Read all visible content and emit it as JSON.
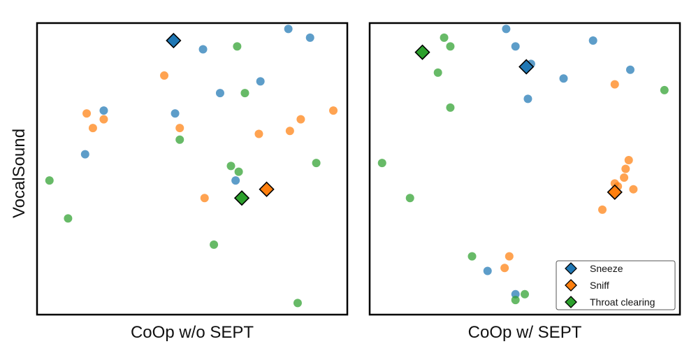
{
  "figure": {
    "ylabel": "VocalSound",
    "legend_position": "bottom-right of right panel"
  },
  "colors": {
    "Sneeze": "#1f77b4",
    "Sniff": "#ff7f0e",
    "Throat clearing": "#2ca02c"
  },
  "chart_data": [
    {
      "type": "scatter",
      "xlabel": "CoOp w/o SEPT",
      "ylabel": "VocalSound",
      "xlim": [
        0,
        100
      ],
      "ylim": [
        0,
        100
      ],
      "grid": false,
      "series": [
        {
          "name": "Sneeze",
          "points": [
            [
              21.5,
              70
            ],
            [
              15.5,
              55
            ],
            [
              44.5,
              69
            ],
            [
              53.5,
              91
            ],
            [
              59,
              76
            ],
            [
              72,
              80
            ],
            [
              81,
              98
            ],
            [
              88,
              95
            ],
            [
              64,
              46
            ]
          ],
          "prototype": [
            44,
            94
          ]
        },
        {
          "name": "Sniff",
          "points": [
            [
              16,
              69
            ],
            [
              18,
              64
            ],
            [
              21.5,
              67
            ],
            [
              41,
              82
            ],
            [
              46,
              64
            ],
            [
              71.5,
              62
            ],
            [
              81.5,
              63
            ],
            [
              85,
              67
            ],
            [
              95.5,
              70
            ],
            [
              54,
              40
            ]
          ],
          "prototype": [
            74,
            43
          ]
        },
        {
          "name": "Throat clearing",
          "points": [
            [
              4,
              46
            ],
            [
              10,
              33
            ],
            [
              46,
              60
            ],
            [
              62.5,
              51
            ],
            [
              65,
              49
            ],
            [
              67,
              76
            ],
            [
              64.5,
              92
            ],
            [
              90,
              52
            ],
            [
              57,
              24
            ],
            [
              84,
              4
            ]
          ],
          "prototype": [
            66,
            40
          ]
        }
      ]
    },
    {
      "type": "scatter",
      "xlabel": "CoOp w/ SEPT",
      "ylabel": "",
      "xlim": [
        0,
        100
      ],
      "ylim": [
        0,
        100
      ],
      "grid": false,
      "series": [
        {
          "name": "Sneeze",
          "points": [
            [
              44,
              98
            ],
            [
              47,
              92
            ],
            [
              52,
              86
            ],
            [
              51,
              74
            ],
            [
              62.5,
              81
            ],
            [
              72,
              94
            ],
            [
              84,
              84
            ],
            [
              38,
              15
            ],
            [
              47,
              7
            ]
          ],
          "prototype": [
            50.5,
            85
          ]
        },
        {
          "name": "Sniff",
          "points": [
            [
              79,
              79
            ],
            [
              83.5,
              53
            ],
            [
              82.5,
              50
            ],
            [
              80,
              44
            ],
            [
              79,
              45
            ],
            [
              82,
              47
            ],
            [
              85,
              43
            ],
            [
              75,
              36
            ],
            [
              45,
              20
            ],
            [
              43.5,
              16
            ]
          ],
          "prototype": [
            79,
            42
          ]
        },
        {
          "name": "Throat clearing",
          "points": [
            [
              24,
              95
            ],
            [
              26,
              92
            ],
            [
              22,
              83
            ],
            [
              26,
              71
            ],
            [
              4,
              52
            ],
            [
              13,
              40
            ],
            [
              33,
              20
            ],
            [
              50,
              7
            ],
            [
              47,
              5
            ],
            [
              95,
              77
            ]
          ],
          "prototype": [
            17,
            90
          ]
        }
      ]
    }
  ]
}
